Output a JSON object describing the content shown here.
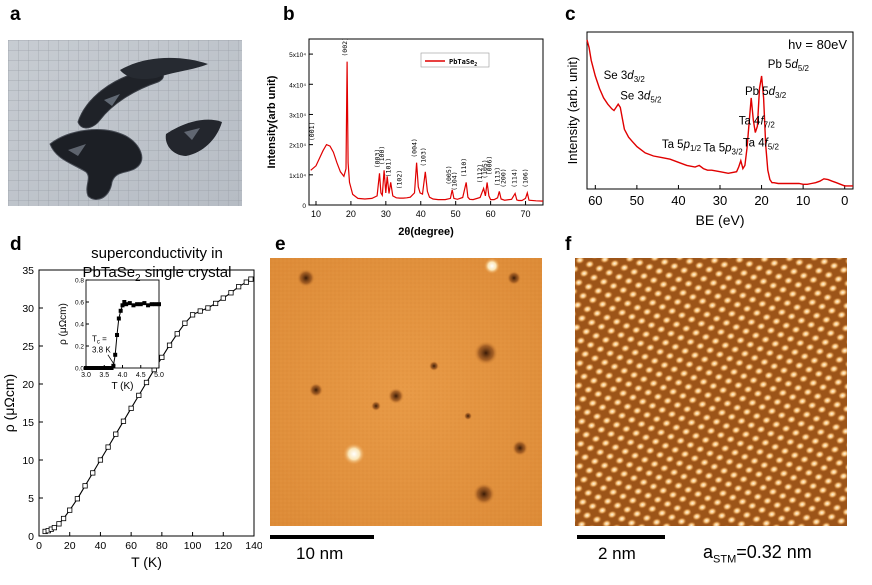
{
  "panels": {
    "a": {
      "label": "a"
    },
    "b": {
      "label": "b"
    },
    "c": {
      "label": "c"
    },
    "d": {
      "label": "d",
      "title_line1": "superconductivity in",
      "title_line2": "PbTaSe",
      "title_sub": "2",
      "title_line2_suffix": " single crystal"
    },
    "e": {
      "label": "e",
      "scale_text": "10 nm"
    },
    "f": {
      "label": "f",
      "scale_text": "2 nm",
      "a_stm_main": "a",
      "a_stm_sub": "STM",
      "a_stm_value": "=0.32 nm"
    }
  },
  "colors": {
    "data_red": "#e00000",
    "stm_orange": "#e8923a",
    "black": "#000000"
  },
  "chart_data": [
    {
      "type": "line",
      "panel": "b",
      "xlabel": "2θ(degree)",
      "ylabel": "Intensity(arb unit)",
      "xlim": [
        8,
        75
      ],
      "ylim": [
        0,
        55000
      ],
      "xticks": [
        10,
        20,
        30,
        40,
        50,
        60,
        70
      ],
      "yticks": [
        0,
        10000,
        20000,
        30000,
        40000,
        50000
      ],
      "ytick_labels": [
        "0",
        "1x10⁴",
        "2x10⁴",
        "3x10⁴",
        "4x10⁴",
        "5x10⁴"
      ],
      "legend": {
        "name": "PbTaSe",
        "sub": "2"
      },
      "series": [
        {
          "name": "PbTaSe2",
          "x": [
            8.5,
            10,
            11,
            12,
            13,
            14,
            15,
            16,
            17,
            18,
            18.6,
            18.9,
            19.2,
            19.6,
            20.5,
            22,
            24,
            26,
            27.5,
            28.2,
            28.6,
            29,
            29.5,
            30,
            30.4,
            30.9,
            31.4,
            32,
            33,
            34,
            35,
            36,
            37,
            38.2,
            38.8,
            39.3,
            39.8,
            40.5,
            41.3,
            41.9,
            42.5,
            43.5,
            45,
            47,
            48.5,
            49,
            49.5,
            50.5,
            52,
            53,
            53.5,
            54,
            55,
            57,
            58,
            58.5,
            59,
            59.5,
            60,
            61,
            62,
            62.5,
            63,
            64,
            66,
            67,
            67.5,
            68,
            69,
            70,
            70.5,
            71,
            73,
            75
          ],
          "y": [
            11500,
            13000,
            15500,
            18000,
            20000,
            19500,
            17500,
            14000,
            11000,
            9500,
            12000,
            47500,
            14000,
            7500,
            3500,
            2200,
            2000,
            2200,
            3000,
            10500,
            4000,
            3200,
            11500,
            4000,
            9500,
            3800,
            7500,
            3000,
            2400,
            2300,
            2300,
            2400,
            2600,
            4000,
            14000,
            6000,
            4000,
            3600,
            11000,
            4500,
            2600,
            2000,
            1800,
            1800,
            2200,
            5000,
            2200,
            1900,
            2500,
            7500,
            2600,
            1900,
            1800,
            2500,
            5500,
            3000,
            7500,
            3000,
            1800,
            1800,
            2400,
            4500,
            2000,
            1600,
            1900,
            3800,
            1700,
            1500,
            1500,
            2200,
            4000,
            1600,
            1400,
            1300
          ]
        }
      ],
      "peak_labels": [
        {
          "text": "(001)",
          "x": 9.5,
          "y": 20500
        },
        {
          "text": "(002)",
          "x": 18.9,
          "y": 48500
        },
        {
          "text": "(003)",
          "x": 28.2,
          "y": 11500
        },
        {
          "text": "(100)",
          "x": 29.5,
          "y": 12500
        },
        {
          "text": "(101)",
          "x": 31.4,
          "y": 8500
        },
        {
          "text": "(102)",
          "x": 34.5,
          "y": 4500
        },
        {
          "text": "(004)",
          "x": 38.8,
          "y": 15000
        },
        {
          "text": "(103)",
          "x": 41.3,
          "y": 12000
        },
        {
          "text": "(005)",
          "x": 48.7,
          "y": 6000
        },
        {
          "text": "(104)",
          "x": 50.2,
          "y": 4000
        },
        {
          "text": "(110)",
          "x": 53,
          "y": 8500
        },
        {
          "text": "(112)",
          "x": 57.6,
          "y": 6500
        },
        {
          "text": "(105)",
          "x": 59,
          "y": 8000
        },
        {
          "text": "(006)",
          "x": 60.3,
          "y": 9200
        },
        {
          "text": "(113)",
          "x": 62.5,
          "y": 5500
        },
        {
          "text": "(200)",
          "x": 64.3,
          "y": 5000
        },
        {
          "text": "(114)",
          "x": 67.4,
          "y": 5000
        },
        {
          "text": "(106)",
          "x": 70.5,
          "y": 5000
        }
      ]
    },
    {
      "type": "line",
      "panel": "c",
      "xlabel": "BE (eV)",
      "ylabel": "Intensity (arb. unit)",
      "xlim": [
        62,
        -2
      ],
      "ylim": [
        0,
        1
      ],
      "xticks": [
        60,
        50,
        40,
        30,
        20,
        10,
        0
      ],
      "annotation_text": "hν = 80eV",
      "series": [
        {
          "name": "spectrum",
          "x": [
            62,
            61.5,
            61,
            60,
            59,
            58,
            57,
            56,
            55.5,
            55,
            54.5,
            54,
            53.5,
            53,
            52,
            51,
            50,
            48,
            46,
            44,
            42,
            40,
            38,
            36,
            35,
            34,
            33,
            32,
            30,
            28,
            26,
            25.5,
            25,
            24.5,
            24,
            23.5,
            23,
            22.5,
            22,
            21.5,
            21,
            20.5,
            20,
            19.5,
            19,
            18.5,
            18,
            17.5,
            17,
            16,
            15,
            14,
            13,
            12,
            11,
            10,
            9,
            8,
            7,
            6,
            5,
            4,
            3,
            2,
            1,
            0,
            -1,
            -2
          ],
          "y": [
            0.95,
            0.9,
            0.82,
            0.72,
            0.64,
            0.58,
            0.54,
            0.51,
            0.5,
            0.52,
            0.54,
            0.52,
            0.45,
            0.38,
            0.33,
            0.3,
            0.27,
            0.23,
            0.21,
            0.2,
            0.19,
            0.17,
            0.15,
            0.14,
            0.15,
            0.13,
            0.12,
            0.12,
            0.11,
            0.1,
            0.11,
            0.14,
            0.18,
            0.13,
            0.15,
            0.26,
            0.42,
            0.58,
            0.44,
            0.36,
            0.4,
            0.64,
            0.72,
            0.58,
            0.28,
            0.12,
            0.06,
            0.04,
            0.04,
            0.035,
            0.035,
            0.035,
            0.035,
            0.035,
            0.035,
            0.03,
            0.03,
            0.035,
            0.04,
            0.05,
            0.065,
            0.06,
            0.05,
            0.04,
            0.03,
            0.02,
            0.02,
            0.02
          ]
        }
      ],
      "peak_labels": [
        {
          "main": "Se 3",
          "ital": "d",
          "sub": "3/2",
          "x": 58,
          "y": 0.7
        },
        {
          "main": "Se 3",
          "ital": "d",
          "sub": "5/2",
          "x": 54,
          "y": 0.57
        },
        {
          "main": "Ta 5",
          "ital": "p",
          "sub": "1/2",
          "x": 44,
          "y": 0.26
        },
        {
          "main": "Ta 5",
          "ital": "p",
          "sub": "3/2",
          "x": 34,
          "y": 0.24
        },
        {
          "main": "Pb 5",
          "ital": "d",
          "sub": "3/2",
          "x": 24,
          "y": 0.6
        },
        {
          "main": "Pb 5",
          "ital": "d",
          "sub": "5/2",
          "x": 18.5,
          "y": 0.77
        },
        {
          "main": "Ta 4",
          "ital": "f",
          "sub": "7/2",
          "x": 25.5,
          "y": 0.41
        },
        {
          "main": "Ta 4",
          "ital": "f",
          "sub": "5/2",
          "x": 24.5,
          "y": 0.27
        }
      ]
    },
    {
      "type": "scatter",
      "panel": "d",
      "xlabel": "T (K)",
      "ylabel": "ρ (μΩcm)",
      "xlim": [
        0,
        140
      ],
      "ylim": [
        0,
        35
      ],
      "xticks": [
        0,
        20,
        40,
        60,
        80,
        100,
        120,
        140
      ],
      "yticks": [
        0,
        5,
        10,
        15,
        20,
        25,
        30,
        35
      ],
      "series": [
        {
          "name": "rho_T",
          "x": [
            4,
            6,
            8,
            10,
            13,
            16,
            20,
            25,
            30,
            35,
            40,
            45,
            50,
            55,
            60,
            65,
            70,
            75,
            80,
            85,
            90,
            95,
            100,
            105,
            110,
            115,
            120,
            125,
            130,
            135,
            138
          ],
          "y": [
            0.6,
            0.7,
            0.9,
            1.1,
            1.6,
            2.3,
            3.4,
            4.9,
            6.6,
            8.3,
            10.0,
            11.7,
            13.4,
            15.1,
            16.8,
            18.5,
            20.2,
            21.9,
            23.5,
            25.1,
            26.6,
            28.0,
            29.1,
            29.6,
            30.0,
            30.6,
            31.3,
            32.0,
            32.8,
            33.4,
            33.8
          ]
        }
      ],
      "inset": {
        "type": "line",
        "xlabel": "T (K)",
        "ylabel": "ρ (μΩcm)",
        "xlim": [
          3.0,
          5.0
        ],
        "ylim": [
          0,
          0.8
        ],
        "xticks": [
          3.0,
          3.5,
          4.0,
          4.5,
          5.0
        ],
        "xtick_labels": [
          "3.0",
          "3.5",
          "4.0",
          "4.5",
          "5.0"
        ],
        "yticks": [
          0,
          0.2,
          0.4,
          0.6,
          0.8
        ],
        "ytick_labels": [
          "0.0",
          "0.2",
          "0.4",
          "0.6",
          "0.8"
        ],
        "annotation_main": "T",
        "annotation_sub": "c",
        "annotation_rest": " =",
        "annotation_value": "3.8 K",
        "x": [
          3.0,
          3.1,
          3.2,
          3.3,
          3.4,
          3.5,
          3.6,
          3.7,
          3.75,
          3.8,
          3.85,
          3.9,
          3.95,
          4.0,
          4.05,
          4.1,
          4.2,
          4.3,
          4.4,
          4.5,
          4.6,
          4.7,
          4.8,
          4.9,
          5.0
        ],
        "y": [
          0,
          0,
          0,
          0,
          0,
          0,
          0,
          0,
          0.02,
          0.12,
          0.3,
          0.45,
          0.52,
          0.57,
          0.6,
          0.58,
          0.59,
          0.57,
          0.58,
          0.58,
          0.59,
          0.57,
          0.58,
          0.58,
          0.58
        ]
      }
    }
  ]
}
